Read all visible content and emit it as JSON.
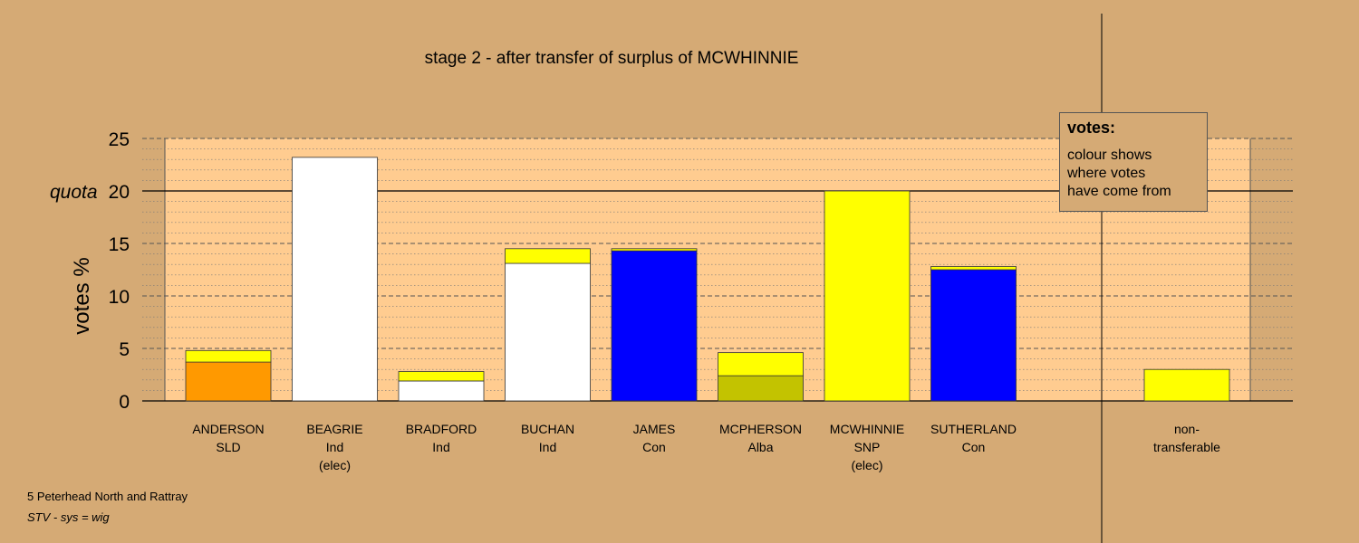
{
  "chart_data": {
    "type": "bar",
    "stacked": true,
    "title": "stage 2 - after transfer of surplus of MCWHINNIE",
    "ylabel": "votes %",
    "ylim": [
      0,
      25
    ],
    "yticks": [
      "0",
      "5",
      "10",
      "15",
      "20",
      "25"
    ],
    "quota": {
      "label": "quota",
      "value": 20
    },
    "grid": true,
    "categories": [
      {
        "name": "ANDERSON",
        "party": "SLD",
        "note": ""
      },
      {
        "name": "BEAGRIE",
        "party": "Ind",
        "note": "(elec)"
      },
      {
        "name": "BRADFORD",
        "party": "Ind",
        "note": ""
      },
      {
        "name": "BUCHAN",
        "party": "Ind",
        "note": ""
      },
      {
        "name": "JAMES",
        "party": "Con",
        "note": ""
      },
      {
        "name": "MCPHERSON",
        "party": "Alba",
        "note": ""
      },
      {
        "name": "MCWHINNIE",
        "party": "SNP",
        "note": "(elec)"
      },
      {
        "name": "SUTHERLAND",
        "party": "Con",
        "note": ""
      }
    ],
    "series": [
      {
        "values": [
          3.7,
          23.2,
          1.9,
          13.1,
          14.3,
          2.4,
          20.0,
          12.5
        ],
        "colors": [
          "#ff9900",
          "#ffffff",
          "#ffffff",
          "#ffffff",
          "#0000ff",
          "#c3c300",
          "#ffff00",
          "#0000ff"
        ]
      },
      {
        "values": [
          1.1,
          0.0,
          0.9,
          1.4,
          0.2,
          2.2,
          0.0,
          0.3
        ],
        "colors": [
          "#ffff00",
          "#ffff00",
          "#ffff00",
          "#ffff00",
          "#ffff00",
          "#ffff00",
          "#ffff00",
          "#ffff00"
        ]
      }
    ],
    "non_transferable": {
      "label_lines": [
        "non-",
        "transferable"
      ],
      "value": 3.0,
      "color": "#ffff00"
    }
  },
  "legend": {
    "title": "votes:",
    "lines": [
      "colour shows",
      "where votes",
      "have come from"
    ]
  },
  "footer": {
    "constituency": "5 Peterhead North and Rattray",
    "system": "STV - sys = wig"
  }
}
